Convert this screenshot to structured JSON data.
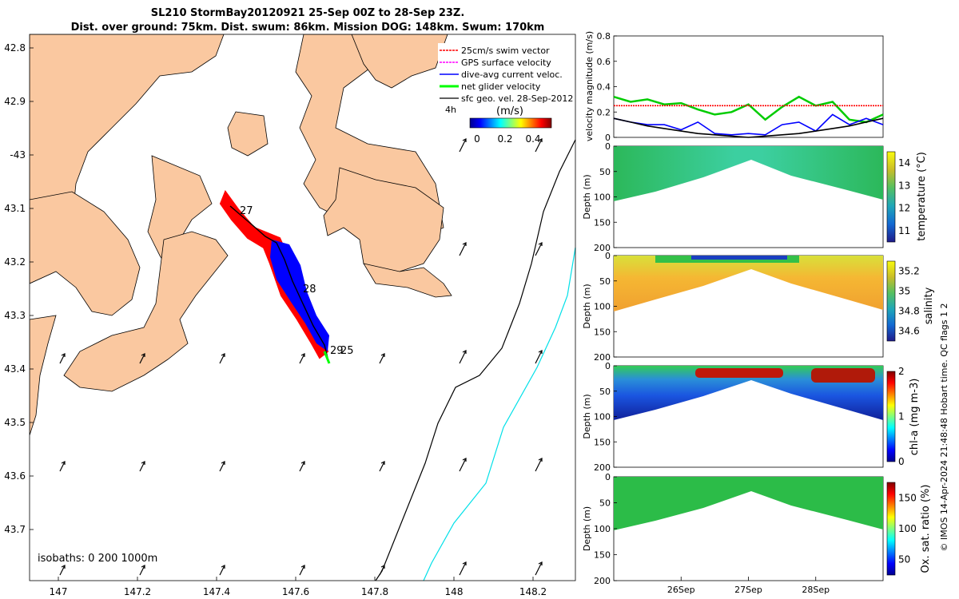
{
  "title_line1": "SL210 StormBay20120921 25-Sep 00Z to 28-Sep 23Z.",
  "title_line2": "Dist. over ground: 75km. Dist. swum: 86km. Mission DOG: 148km. Swum: 170km",
  "map": {
    "lat_ticks": [
      "42.8",
      "42.9",
      "-43",
      "43.1",
      "43.2",
      "43.3",
      "43.4",
      "43.5",
      "43.6",
      "43.7"
    ],
    "lon_ticks": [
      "147",
      "147.2",
      "147.4",
      "147.6",
      "147.8",
      "148",
      "148.2"
    ],
    "legend": [
      {
        "label": "25cm/s swim vector",
        "color": "#ff0000"
      },
      {
        "label": "GPS surface velocity",
        "color": "#ff00ff"
      },
      {
        "label": "dive-avg current veloc.",
        "color": "#0000ff"
      },
      {
        "label": "net glider velocity",
        "color": "#00ff00"
      },
      {
        "label": "sfc geo. vel. 28-Sep-2012",
        "color": "#000000"
      }
    ],
    "legend_overflow": "4h",
    "colorbar_title": "(m/s)",
    "colorbar_ticks": [
      "0",
      "0.2",
      "0.4"
    ],
    "day_labels": [
      "27",
      "28",
      "29",
      "25"
    ],
    "isobaths_label": "isobaths: 0   200  1000m"
  },
  "footer": "© IMOS 14-Apr-2024 21:48:48 Hobart time. QC flags 1  2",
  "chart_data": [
    {
      "type": "line",
      "title": "velocity magnitude",
      "ylabel": "velocity magnitude (m/s)",
      "ylim": [
        0,
        0.8
      ],
      "yticks": [
        "0",
        "0.2",
        "0.4",
        "0.6",
        "0.8"
      ],
      "x": [
        25.0,
        25.25,
        25.5,
        25.75,
        26.0,
        26.25,
        26.5,
        26.75,
        27.0,
        27.25,
        27.5,
        27.75,
        28.0,
        28.25,
        28.5,
        28.75,
        29.0
      ],
      "series": [
        {
          "name": "net glider velocity",
          "color": "#00cc00",
          "values": [
            0.32,
            0.28,
            0.3,
            0.26,
            0.27,
            0.22,
            0.18,
            0.2,
            0.26,
            0.14,
            0.24,
            0.32,
            0.25,
            0.28,
            0.14,
            0.12,
            0.18
          ]
        },
        {
          "name": "swim",
          "color": "#ff0000",
          "values": [
            0.25,
            0.25,
            0.25,
            0.25,
            0.25,
            0.25,
            0.25,
            0.25,
            0.25,
            0.25,
            0.25,
            0.25,
            0.25,
            0.25,
            0.25,
            0.25,
            0.25
          ]
        },
        {
          "name": "dive-avg current",
          "color": "#0000ff",
          "values": [
            0.15,
            0.12,
            0.1,
            0.1,
            0.06,
            0.12,
            0.03,
            0.02,
            0.03,
            0.02,
            0.1,
            0.12,
            0.05,
            0.18,
            0.1,
            0.15,
            0.1
          ]
        },
        {
          "name": "surface geostrophic",
          "color": "#000000",
          "values": [
            0.15,
            0.12,
            0.09,
            0.07,
            0.05,
            0.03,
            0.02,
            0.01,
            0.0,
            0.01,
            0.02,
            0.03,
            0.05,
            0.07,
            0.09,
            0.12,
            0.15
          ]
        }
      ]
    },
    {
      "type": "heatmap",
      "variable": "temperature",
      "clabel": "temperature (°C)",
      "ylabel": "Depth (m)",
      "ylim": [
        0,
        200
      ],
      "yticks": [
        "0",
        "50",
        "100",
        "150",
        "200"
      ],
      "cticks": [
        "11",
        "12",
        "13",
        "14"
      ],
      "crange": [
        10.5,
        14.5
      ]
    },
    {
      "type": "heatmap",
      "variable": "salinity",
      "clabel": "salinity",
      "ylabel": "Depth (m)",
      "ylim": [
        0,
        200
      ],
      "yticks": [
        "0",
        "50",
        "100",
        "150",
        "200"
      ],
      "cticks": [
        "34.6",
        "34.8",
        "35",
        "35.2"
      ],
      "crange": [
        34.5,
        35.3
      ]
    },
    {
      "type": "heatmap",
      "variable": "chl-a",
      "clabel": "chl-a (mg m-3)",
      "ylabel": "Depth (m)",
      "ylim": [
        0,
        200
      ],
      "yticks": [
        "0",
        "50",
        "100",
        "150",
        "200"
      ],
      "cticks": [
        "0",
        "1",
        "2"
      ],
      "crange": [
        0,
        2
      ]
    },
    {
      "type": "heatmap",
      "variable": "oxygen",
      "clabel": "Ox. sat. ratio (%)",
      "ylabel": "Depth (m)",
      "ylim": [
        0,
        200
      ],
      "yticks": [
        "0",
        "50",
        "100",
        "150",
        "200"
      ],
      "cticks": [
        "50",
        "100",
        "150"
      ],
      "crange": [
        25,
        175
      ],
      "xticks": [
        "26Sep",
        "27Sep",
        "28Sep"
      ],
      "xrange": [
        25,
        29
      ]
    }
  ]
}
